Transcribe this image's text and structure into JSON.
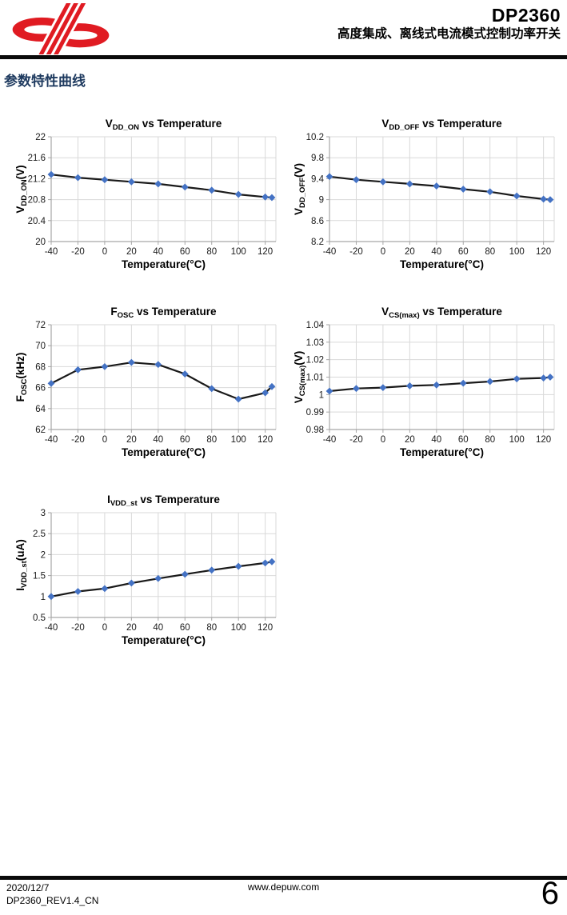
{
  "header": {
    "logo_name": "dp-logo",
    "part_number": "DP2360",
    "subtitle": "高度集成、离线式电流模式控制功率开关"
  },
  "section_title": "参数特性曲线",
  "footer": {
    "date": "2020/12/7",
    "doc_id": "DP2360_REV1.4_CN",
    "website": "www.depuw.com",
    "page_number": "6"
  },
  "colors": {
    "accent_red": "#E01B22",
    "heading_blue": "#1E3A5F",
    "marker_blue": "#4472C4",
    "line_black": "#1a1a1a",
    "gridline": "#D9D9D9",
    "axis": "#A6A6A6",
    "tick_text": "#1a1a1a"
  },
  "chart_data": [
    {
      "type": "line",
      "title_parts": [
        {
          "text": "V",
          "sub": false
        },
        {
          "text": "DD_ON",
          "sub": true
        },
        {
          "text": " vs Temperature",
          "sub": false
        }
      ],
      "ylabel_parts": [
        {
          "text": "V",
          "sub": false
        },
        {
          "text": "DD_ON",
          "sub": true
        },
        {
          "text": "(V)",
          "sub": false
        }
      ],
      "xlabel": "Temperature(°C)",
      "x": [
        -40,
        -20,
        0,
        20,
        40,
        60,
        80,
        100,
        120,
        125
      ],
      "values": [
        21.28,
        21.22,
        21.18,
        21.14,
        21.1,
        21.04,
        20.98,
        20.9,
        20.85,
        20.84
      ],
      "xlim": [
        -40,
        128
      ],
      "ylim": [
        20,
        22
      ],
      "xticks": [
        -40,
        -20,
        0,
        20,
        40,
        60,
        80,
        100,
        120
      ],
      "xtick_labels": [
        "-40",
        "-20",
        "0",
        "20",
        "40",
        "60",
        "80",
        "100",
        "120"
      ],
      "yticks": [
        20,
        20.4,
        20.8,
        21.2,
        21.6,
        22
      ],
      "ytick_labels": [
        "20",
        "20.4",
        "20.8",
        "21.2",
        "21.6",
        "22"
      ],
      "grid": true,
      "legend": "none",
      "marker": "diamond"
    },
    {
      "type": "line",
      "title_parts": [
        {
          "text": "V",
          "sub": false
        },
        {
          "text": "DD_OFF",
          "sub": true
        },
        {
          "text": " vs Temperature",
          "sub": false
        }
      ],
      "ylabel_parts": [
        {
          "text": "V",
          "sub": false
        },
        {
          "text": "DD_OFF",
          "sub": true
        },
        {
          "text": "(V)",
          "sub": false
        }
      ],
      "xlabel": "Temperature(°C)",
      "x": [
        -40,
        -20,
        0,
        20,
        40,
        60,
        80,
        100,
        120,
        125
      ],
      "values": [
        9.44,
        9.38,
        9.34,
        9.3,
        9.26,
        9.2,
        9.15,
        9.07,
        9.01,
        9.0
      ],
      "xlim": [
        -40,
        128
      ],
      "ylim": [
        8.2,
        10.2
      ],
      "xticks": [
        -40,
        -20,
        0,
        20,
        40,
        60,
        80,
        100,
        120
      ],
      "xtick_labels": [
        "-40",
        "-20",
        "0",
        "20",
        "40",
        "60",
        "80",
        "100",
        "120"
      ],
      "yticks": [
        8.2,
        8.6,
        9,
        9.4,
        9.8,
        10.2
      ],
      "ytick_labels": [
        "8.2",
        "8.6",
        "9",
        "9.4",
        "9.8",
        "10.2"
      ],
      "grid": true,
      "legend": "none",
      "marker": "diamond"
    },
    {
      "type": "line",
      "title_parts": [
        {
          "text": "F",
          "sub": false
        },
        {
          "text": "OSC",
          "sub": true
        },
        {
          "text": " vs Temperature",
          "sub": false
        }
      ],
      "ylabel_parts": [
        {
          "text": "F",
          "sub": false
        },
        {
          "text": "OSC",
          "sub": true
        },
        {
          "text": "(kHz)",
          "sub": false
        }
      ],
      "xlabel": "Temperature(°C)",
      "x": [
        -40,
        -20,
        0,
        20,
        40,
        60,
        80,
        100,
        120,
        125
      ],
      "values": [
        66.4,
        67.7,
        68.0,
        68.4,
        68.2,
        67.3,
        65.9,
        64.9,
        65.5,
        66.1
      ],
      "xlim": [
        -40,
        128
      ],
      "ylim": [
        62,
        72
      ],
      "xticks": [
        -40,
        -20,
        0,
        20,
        40,
        60,
        80,
        100,
        120
      ],
      "xtick_labels": [
        "-40",
        "-20",
        "0",
        "20",
        "40",
        "60",
        "80",
        "100",
        "120"
      ],
      "yticks": [
        62,
        64,
        66,
        68,
        70,
        72
      ],
      "ytick_labels": [
        "62",
        "64",
        "66",
        "68",
        "70",
        "72"
      ],
      "grid": true,
      "legend": "none",
      "marker": "diamond"
    },
    {
      "type": "line",
      "title_parts": [
        {
          "text": "V",
          "sub": false
        },
        {
          "text": "CS(max)",
          "sub": true
        },
        {
          "text": " vs Temperature",
          "sub": false
        }
      ],
      "ylabel_parts": [
        {
          "text": "V",
          "sub": false
        },
        {
          "text": "CS(max)",
          "sub": true
        },
        {
          "text": "(V)",
          "sub": false
        }
      ],
      "xlabel": "Temperature(°C)",
      "x": [
        -40,
        -20,
        0,
        20,
        40,
        60,
        80,
        100,
        120,
        125
      ],
      "values": [
        1.002,
        1.0035,
        1.004,
        1.005,
        1.0055,
        1.0065,
        1.0075,
        1.009,
        1.0095,
        1.01
      ],
      "xlim": [
        -40,
        128
      ],
      "ylim": [
        0.98,
        1.04
      ],
      "xticks": [
        -40,
        -20,
        0,
        20,
        40,
        60,
        80,
        100,
        120
      ],
      "xtick_labels": [
        "-40",
        "-20",
        "0",
        "20",
        "40",
        "60",
        "80",
        "100",
        "120"
      ],
      "yticks": [
        0.98,
        0.99,
        1,
        1.01,
        1.02,
        1.03,
        1.04
      ],
      "ytick_labels": [
        "0.98",
        "0.99",
        "1",
        "1.01",
        "1.02",
        "1.03",
        "1.04"
      ],
      "grid": true,
      "legend": "none",
      "marker": "diamond"
    },
    {
      "type": "line",
      "title_parts": [
        {
          "text": "I",
          "sub": false
        },
        {
          "text": "VDD_st",
          "sub": true
        },
        {
          "text": " vs Temperature",
          "sub": false
        }
      ],
      "ylabel_parts": [
        {
          "text": "I",
          "sub": false
        },
        {
          "text": "VDD_st",
          "sub": true
        },
        {
          "text": "(uA)",
          "sub": false
        }
      ],
      "xlabel": "Temperature(°C)",
      "x": [
        -40,
        -20,
        0,
        20,
        40,
        60,
        80,
        100,
        120,
        125
      ],
      "values": [
        1.0,
        1.12,
        1.19,
        1.32,
        1.43,
        1.53,
        1.63,
        1.72,
        1.8,
        1.83
      ],
      "xlim": [
        -40,
        128
      ],
      "ylim": [
        0.5,
        3
      ],
      "xticks": [
        -40,
        -20,
        0,
        20,
        40,
        60,
        80,
        100,
        120
      ],
      "xtick_labels": [
        "-40",
        "-20",
        "0",
        "20",
        "40",
        "60",
        "80",
        "100",
        "120"
      ],
      "yticks": [
        0.5,
        1,
        1.5,
        2,
        2.5,
        3
      ],
      "ytick_labels": [
        "0.5",
        "1",
        "1.5",
        "2",
        "2.5",
        "3"
      ],
      "grid": true,
      "legend": "none",
      "marker": "diamond"
    }
  ]
}
